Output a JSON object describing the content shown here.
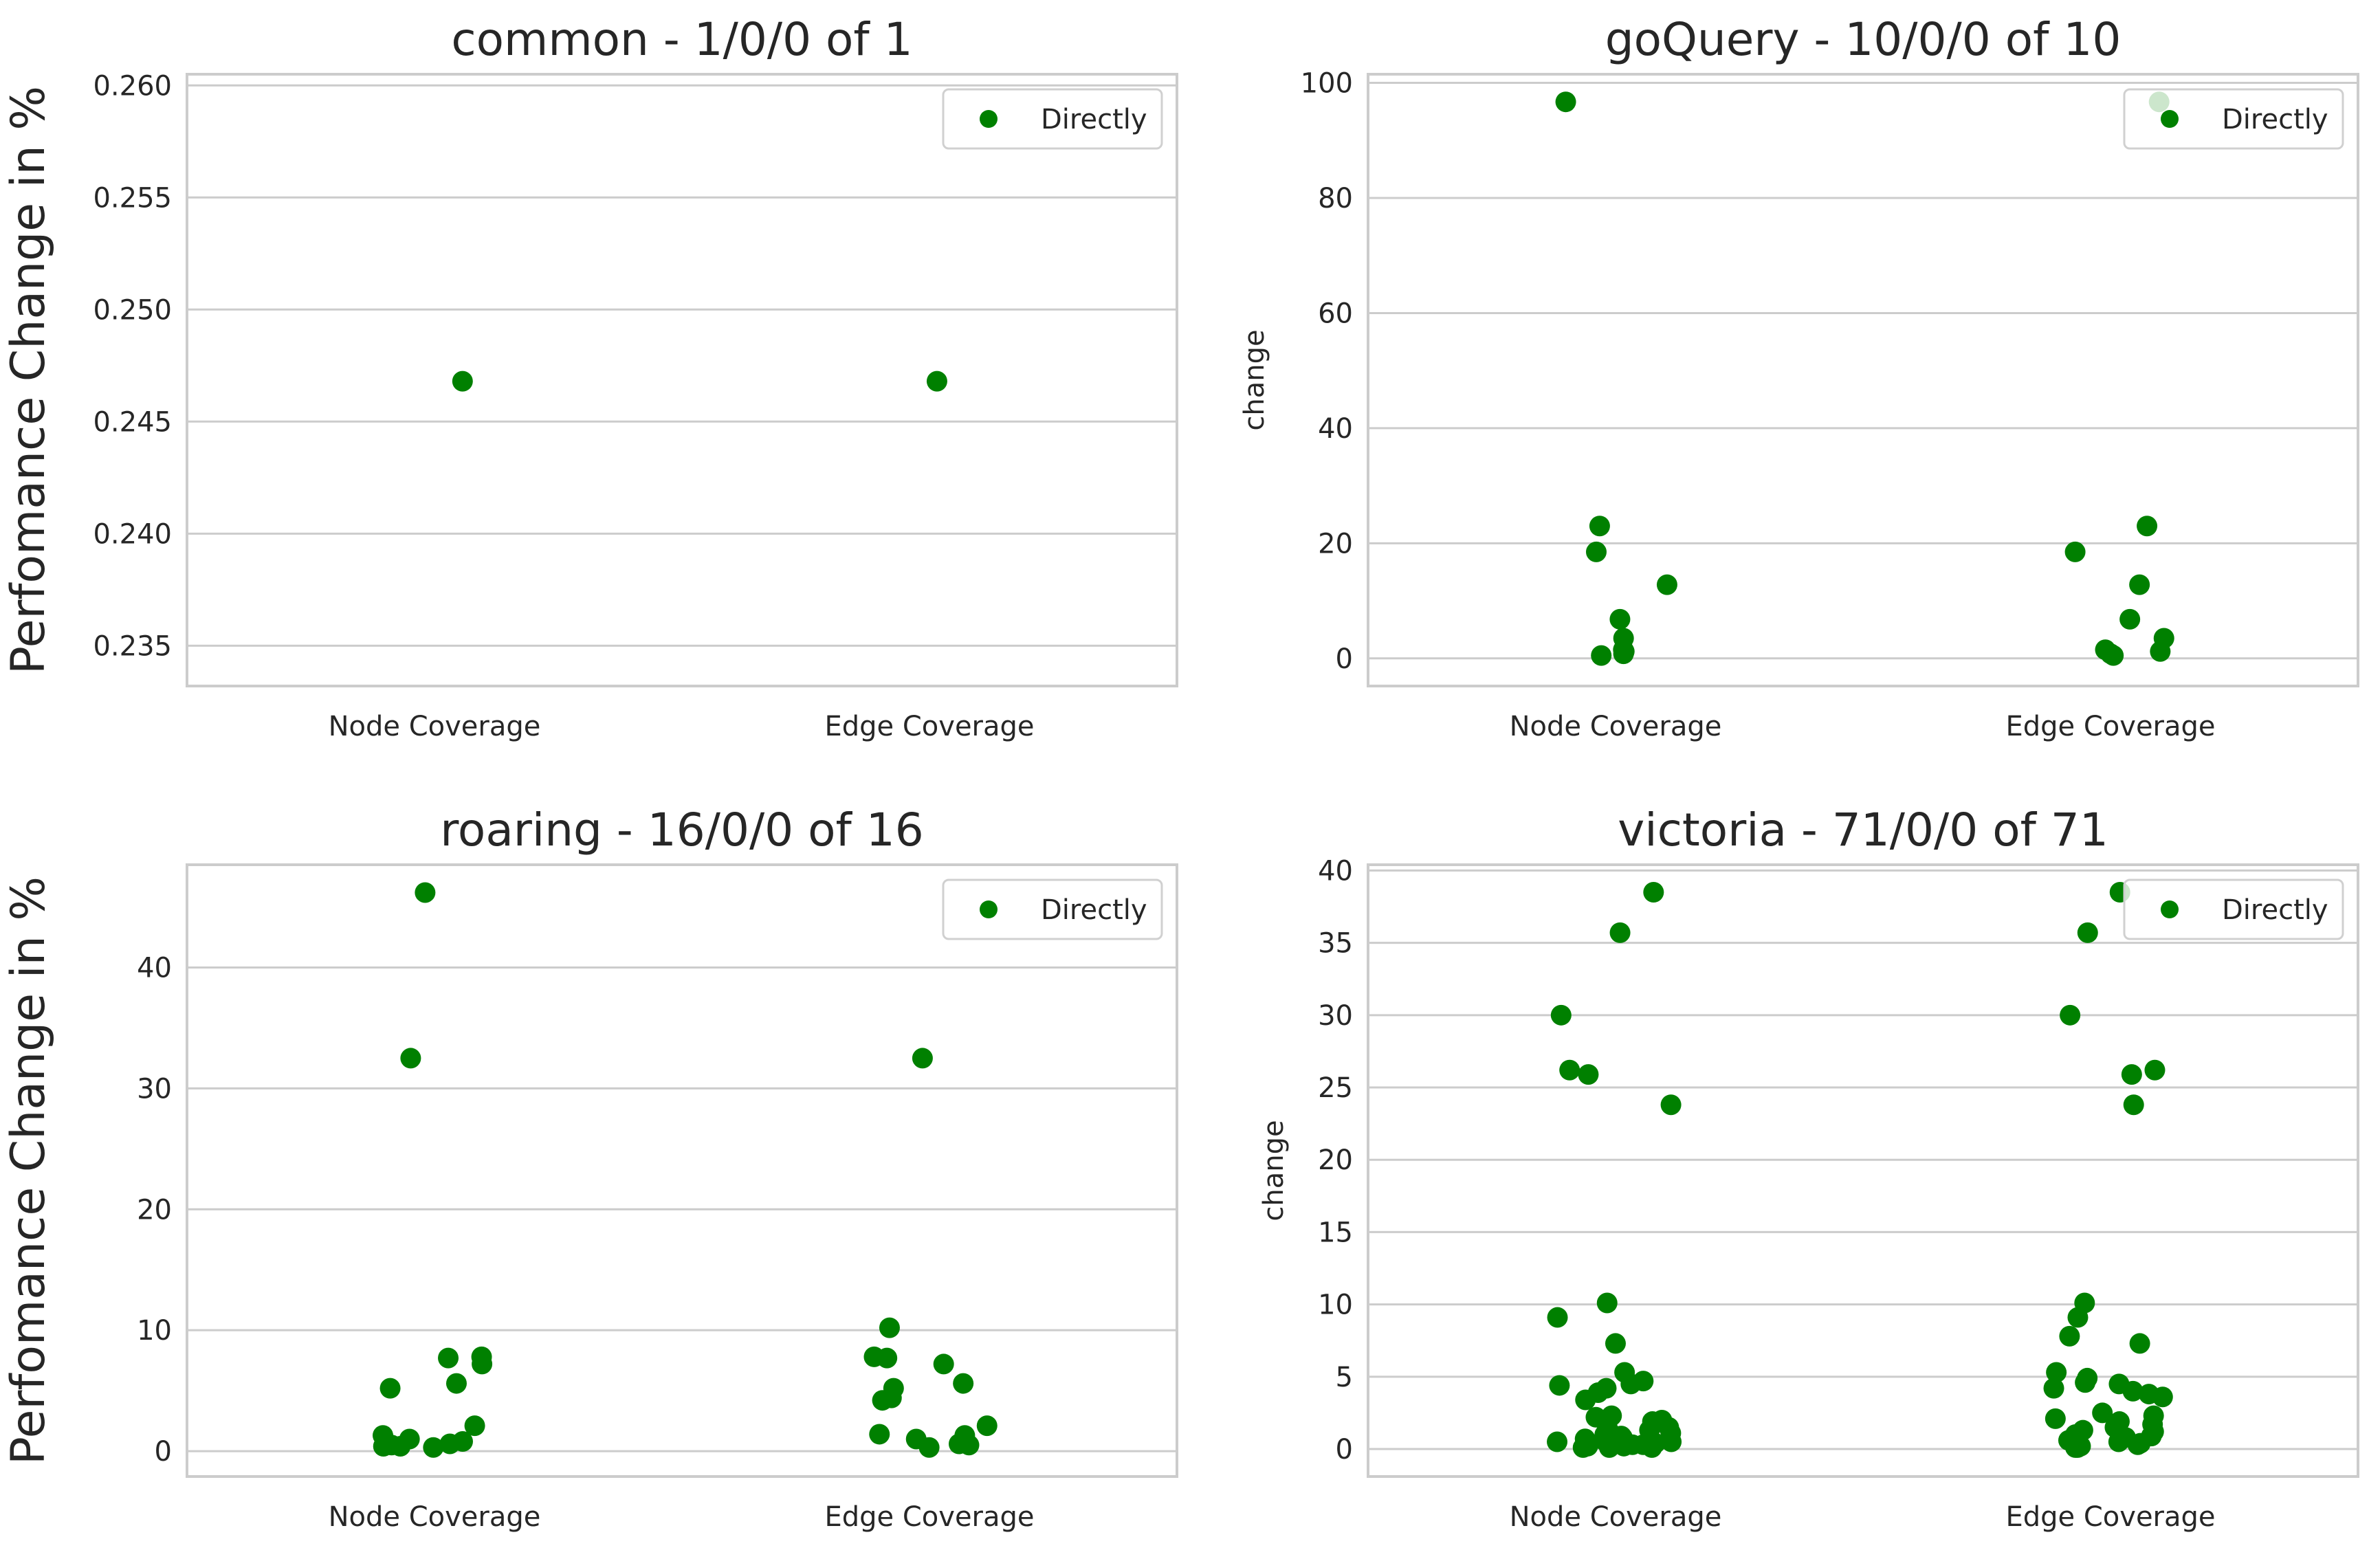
{
  "chart_data": [
    {
      "type": "scatter",
      "title": "common - 1/0/0 of 1",
      "ylabel": "Perfomance Change in %",
      "categories": [
        "Node Coverage",
        "Edge Coverage"
      ],
      "legend": "Directly",
      "ylim": [
        0.2332,
        0.2605
      ],
      "yticks": [
        0.235,
        0.24,
        0.245,
        0.25,
        0.255,
        0.26
      ],
      "ytick_labels": [
        "0.235",
        "0.240",
        "0.245",
        "0.250",
        "0.255",
        "0.260"
      ],
      "series": [
        {
          "name": "Directly",
          "points": [
            {
              "category": "Node Coverage",
              "value": 0.2468
            },
            {
              "category": "Edge Coverage",
              "value": 0.2468
            }
          ]
        }
      ]
    },
    {
      "type": "scatter",
      "title": "goQuery - 10/0/0 of 10",
      "ylabel": "change",
      "categories": [
        "Node Coverage",
        "Edge Coverage"
      ],
      "legend": "Directly",
      "ylim": [
        -4.8,
        101.5
      ],
      "yticks": [
        0,
        20,
        40,
        60,
        80,
        100
      ],
      "ytick_labels": [
        "0",
        "20",
        "40",
        "60",
        "80",
        "100"
      ],
      "series": [
        {
          "name": "Directly",
          "points": [
            {
              "category": "Node Coverage",
              "value": 96.7
            },
            {
              "category": "Node Coverage",
              "value": 23.0
            },
            {
              "category": "Node Coverage",
              "value": 18.5
            },
            {
              "category": "Node Coverage",
              "value": 12.8
            },
            {
              "category": "Node Coverage",
              "value": 6.8
            },
            {
              "category": "Node Coverage",
              "value": 3.5
            },
            {
              "category": "Node Coverage",
              "value": 1.5
            },
            {
              "category": "Node Coverage",
              "value": 1.2
            },
            {
              "category": "Node Coverage",
              "value": 0.8
            },
            {
              "category": "Node Coverage",
              "value": 0.5
            },
            {
              "category": "Edge Coverage",
              "value": 96.7
            },
            {
              "category": "Edge Coverage",
              "value": 23.0
            },
            {
              "category": "Edge Coverage",
              "value": 18.5
            },
            {
              "category": "Edge Coverage",
              "value": 12.8
            },
            {
              "category": "Edge Coverage",
              "value": 6.8
            },
            {
              "category": "Edge Coverage",
              "value": 3.5
            },
            {
              "category": "Edge Coverage",
              "value": 1.5
            },
            {
              "category": "Edge Coverage",
              "value": 1.2
            },
            {
              "category": "Edge Coverage",
              "value": 0.8
            },
            {
              "category": "Edge Coverage",
              "value": 0.5
            }
          ]
        }
      ]
    },
    {
      "type": "scatter",
      "title": "roaring - 16/0/0 of 16",
      "ylabel": "Perfomance Change in %",
      "categories": [
        "Node Coverage",
        "Edge Coverage"
      ],
      "legend": "Directly",
      "ylim": [
        -2.1,
        48.5
      ],
      "yticks": [
        0,
        10,
        20,
        30,
        40
      ],
      "ytick_labels": [
        "0",
        "10",
        "20",
        "30",
        "40"
      ],
      "series": [
        {
          "name": "Directly",
          "points": [
            {
              "category": "Node Coverage",
              "value": 46.2
            },
            {
              "category": "Node Coverage",
              "value": 32.5
            },
            {
              "category": "Node Coverage",
              "value": 7.8
            },
            {
              "category": "Node Coverage",
              "value": 7.7
            },
            {
              "category": "Node Coverage",
              "value": 7.2
            },
            {
              "category": "Node Coverage",
              "value": 5.6
            },
            {
              "category": "Node Coverage",
              "value": 5.2
            },
            {
              "category": "Node Coverage",
              "value": 2.1
            },
            {
              "category": "Node Coverage",
              "value": 1.3
            },
            {
              "category": "Node Coverage",
              "value": 1.0
            },
            {
              "category": "Node Coverage",
              "value": 0.8
            },
            {
              "category": "Node Coverage",
              "value": 0.6
            },
            {
              "category": "Node Coverage",
              "value": 0.5
            },
            {
              "category": "Node Coverage",
              "value": 0.4
            },
            {
              "category": "Node Coverage",
              "value": 0.4
            },
            {
              "category": "Node Coverage",
              "value": 0.3
            },
            {
              "category": "Edge Coverage",
              "value": 32.5
            },
            {
              "category": "Edge Coverage",
              "value": 10.2
            },
            {
              "category": "Edge Coverage",
              "value": 7.8
            },
            {
              "category": "Edge Coverage",
              "value": 7.7
            },
            {
              "category": "Edge Coverage",
              "value": 7.2
            },
            {
              "category": "Edge Coverage",
              "value": 5.6
            },
            {
              "category": "Edge Coverage",
              "value": 5.2
            },
            {
              "category": "Edge Coverage",
              "value": 4.4
            },
            {
              "category": "Edge Coverage",
              "value": 4.2
            },
            {
              "category": "Edge Coverage",
              "value": 2.1
            },
            {
              "category": "Edge Coverage",
              "value": 1.4
            },
            {
              "category": "Edge Coverage",
              "value": 1.3
            },
            {
              "category": "Edge Coverage",
              "value": 1.0
            },
            {
              "category": "Edge Coverage",
              "value": 0.6
            },
            {
              "category": "Edge Coverage",
              "value": 0.5
            },
            {
              "category": "Edge Coverage",
              "value": 0.3
            }
          ]
        }
      ]
    },
    {
      "type": "scatter",
      "title": "victoria - 71/0/0 of 71",
      "ylabel": "change",
      "categories": [
        "Node Coverage",
        "Edge Coverage"
      ],
      "legend": "Directly",
      "ylim": [
        -1.9,
        40.4
      ],
      "yticks": [
        0,
        5,
        10,
        15,
        20,
        25,
        30,
        35,
        40
      ],
      "ytick_labels": [
        "0",
        "5",
        "10",
        "15",
        "20",
        "25",
        "30",
        "35",
        "40"
      ],
      "series": [
        {
          "name": "Directly",
          "points": [
            {
              "category": "Node Coverage",
              "value": 38.5
            },
            {
              "category": "Node Coverage",
              "value": 35.7
            },
            {
              "category": "Node Coverage",
              "value": 30.0
            },
            {
              "category": "Node Coverage",
              "value": 26.2
            },
            {
              "category": "Node Coverage",
              "value": 25.9
            },
            {
              "category": "Node Coverage",
              "value": 23.8
            },
            {
              "category": "Node Coverage",
              "value": 10.1
            },
            {
              "category": "Node Coverage",
              "value": 9.1
            },
            {
              "category": "Node Coverage",
              "value": 7.3
            },
            {
              "category": "Node Coverage",
              "value": 5.3
            },
            {
              "category": "Node Coverage",
              "value": 4.7
            },
            {
              "category": "Node Coverage",
              "value": 4.5
            },
            {
              "category": "Node Coverage",
              "value": 4.4
            },
            {
              "category": "Node Coverage",
              "value": 4.2
            },
            {
              "category": "Node Coverage",
              "value": 3.9
            },
            {
              "category": "Node Coverage",
              "value": 3.4
            },
            {
              "category": "Node Coverage",
              "value": 2.3
            },
            {
              "category": "Node Coverage",
              "value": 2.2
            },
            {
              "category": "Node Coverage",
              "value": 2.0
            },
            {
              "category": "Node Coverage",
              "value": 1.9
            },
            {
              "category": "Node Coverage",
              "value": 1.8
            },
            {
              "category": "Node Coverage",
              "value": 1.5
            },
            {
              "category": "Node Coverage",
              "value": 1.4
            },
            {
              "category": "Node Coverage",
              "value": 1.3
            },
            {
              "category": "Node Coverage",
              "value": 1.2
            },
            {
              "category": "Node Coverage",
              "value": 1.1
            },
            {
              "category": "Node Coverage",
              "value": 1.0
            },
            {
              "category": "Node Coverage",
              "value": 0.9
            },
            {
              "category": "Node Coverage",
              "value": 0.8
            },
            {
              "category": "Node Coverage",
              "value": 0.7
            },
            {
              "category": "Node Coverage",
              "value": 0.6
            },
            {
              "category": "Node Coverage",
              "value": 0.5
            },
            {
              "category": "Node Coverage",
              "value": 0.5
            },
            {
              "category": "Node Coverage",
              "value": 0.4
            },
            {
              "category": "Node Coverage",
              "value": 0.3
            },
            {
              "category": "Node Coverage",
              "value": 0.3
            },
            {
              "category": "Node Coverage",
              "value": 0.2
            },
            {
              "category": "Node Coverage",
              "value": 0.2
            },
            {
              "category": "Node Coverage",
              "value": 0.1
            },
            {
              "category": "Node Coverage",
              "value": 0.1
            },
            {
              "category": "Node Coverage",
              "value": 0.1
            },
            {
              "category": "Edge Coverage",
              "value": 38.5
            },
            {
              "category": "Edge Coverage",
              "value": 35.7
            },
            {
              "category": "Edge Coverage",
              "value": 30.0
            },
            {
              "category": "Edge Coverage",
              "value": 26.2
            },
            {
              "category": "Edge Coverage",
              "value": 25.9
            },
            {
              "category": "Edge Coverage",
              "value": 23.8
            },
            {
              "category": "Edge Coverage",
              "value": 10.1
            },
            {
              "category": "Edge Coverage",
              "value": 9.1
            },
            {
              "category": "Edge Coverage",
              "value": 7.8
            },
            {
              "category": "Edge Coverage",
              "value": 7.3
            },
            {
              "category": "Edge Coverage",
              "value": 5.3
            },
            {
              "category": "Edge Coverage",
              "value": 4.9
            },
            {
              "category": "Edge Coverage",
              "value": 4.6
            },
            {
              "category": "Edge Coverage",
              "value": 4.5
            },
            {
              "category": "Edge Coverage",
              "value": 4.2
            },
            {
              "category": "Edge Coverage",
              "value": 4.0
            },
            {
              "category": "Edge Coverage",
              "value": 3.8
            },
            {
              "category": "Edge Coverage",
              "value": 3.6
            },
            {
              "category": "Edge Coverage",
              "value": 2.5
            },
            {
              "category": "Edge Coverage",
              "value": 2.3
            },
            {
              "category": "Edge Coverage",
              "value": 2.1
            },
            {
              "category": "Edge Coverage",
              "value": 1.9
            },
            {
              "category": "Edge Coverage",
              "value": 1.7
            },
            {
              "category": "Edge Coverage",
              "value": 1.5
            },
            {
              "category": "Edge Coverage",
              "value": 1.3
            },
            {
              "category": "Edge Coverage",
              "value": 1.2
            },
            {
              "category": "Edge Coverage",
              "value": 1.0
            },
            {
              "category": "Edge Coverage",
              "value": 0.9
            },
            {
              "category": "Edge Coverage",
              "value": 0.8
            },
            {
              "category": "Edge Coverage",
              "value": 0.6
            },
            {
              "category": "Edge Coverage",
              "value": 0.5
            },
            {
              "category": "Edge Coverage",
              "value": 0.4
            },
            {
              "category": "Edge Coverage",
              "value": 0.3
            },
            {
              "category": "Edge Coverage",
              "value": 0.2
            },
            {
              "category": "Edge Coverage",
              "value": 0.1
            },
            {
              "category": "Edge Coverage",
              "value": 0.1
            }
          ]
        }
      ]
    }
  ],
  "style": {
    "marker_color": "#008000",
    "grid_color": "#cccccc",
    "spine_color": "#cccccc",
    "text_color": "#262626",
    "legend_frame_color": "#d0d0d0"
  }
}
